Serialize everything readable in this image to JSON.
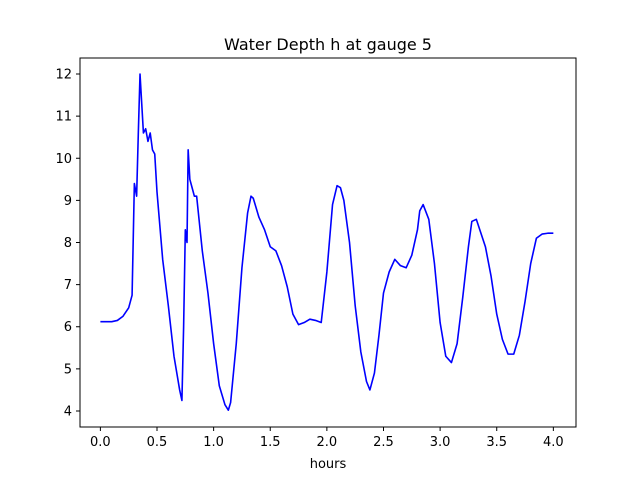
{
  "chart_data": {
    "type": "line",
    "title": "Water Depth h at gauge 5",
    "xlabel": "hours",
    "ylabel": "",
    "xlim": [
      -0.18,
      4.2
    ],
    "ylim": [
      3.62,
      12.38
    ],
    "xticks": [
      0.0,
      0.5,
      1.0,
      1.5,
      2.0,
      2.5,
      3.0,
      3.5,
      4.0
    ],
    "xtick_labels": [
      "0.0",
      "0.5",
      "1.0",
      "1.5",
      "2.0",
      "2.5",
      "3.0",
      "3.5",
      "4.0"
    ],
    "yticks": [
      4,
      5,
      6,
      7,
      8,
      9,
      10,
      11,
      12
    ],
    "ytick_labels": [
      "4",
      "5",
      "6",
      "7",
      "8",
      "9",
      "10",
      "11",
      "12"
    ],
    "grid": false,
    "series": [
      {
        "color": "#0000ff",
        "x": [
          0.0,
          0.05,
          0.1,
          0.15,
          0.2,
          0.25,
          0.28,
          0.3,
          0.32,
          0.335,
          0.35,
          0.365,
          0.38,
          0.4,
          0.42,
          0.44,
          0.46,
          0.48,
          0.5,
          0.55,
          0.6,
          0.65,
          0.7,
          0.72,
          0.735,
          0.75,
          0.765,
          0.775,
          0.79,
          0.81,
          0.83,
          0.85,
          0.9,
          0.95,
          1.0,
          1.05,
          1.1,
          1.13,
          1.15,
          1.2,
          1.25,
          1.3,
          1.33,
          1.35,
          1.4,
          1.45,
          1.5,
          1.55,
          1.6,
          1.65,
          1.7,
          1.75,
          1.8,
          1.85,
          1.9,
          1.95,
          2.0,
          2.05,
          2.09,
          2.12,
          2.15,
          2.2,
          2.25,
          2.3,
          2.35,
          2.38,
          2.42,
          2.46,
          2.5,
          2.55,
          2.6,
          2.65,
          2.7,
          2.75,
          2.8,
          2.82,
          2.85,
          2.9,
          2.95,
          3.0,
          3.05,
          3.1,
          3.15,
          3.2,
          3.25,
          3.28,
          3.32,
          3.4,
          3.45,
          3.5,
          3.55,
          3.6,
          3.65,
          3.7,
          3.75,
          3.8,
          3.85,
          3.9,
          3.95,
          4.0
        ],
        "y": [
          6.12,
          6.12,
          6.12,
          6.15,
          6.25,
          6.45,
          6.75,
          9.4,
          9.1,
          10.6,
          12.0,
          11.3,
          10.6,
          10.7,
          10.4,
          10.6,
          10.2,
          10.1,
          9.2,
          7.6,
          6.5,
          5.3,
          4.5,
          4.25,
          6.0,
          8.3,
          8.0,
          10.2,
          9.5,
          9.3,
          9.1,
          9.1,
          7.8,
          6.8,
          5.6,
          4.6,
          4.15,
          4.02,
          4.2,
          5.6,
          7.4,
          8.7,
          9.1,
          9.05,
          8.6,
          8.3,
          7.9,
          7.8,
          7.45,
          6.95,
          6.3,
          6.05,
          6.1,
          6.18,
          6.15,
          6.1,
          7.3,
          8.9,
          9.35,
          9.3,
          9.0,
          8.0,
          6.5,
          5.4,
          4.7,
          4.5,
          4.9,
          5.8,
          6.8,
          7.3,
          7.6,
          7.45,
          7.4,
          7.7,
          8.3,
          8.75,
          8.9,
          8.55,
          7.5,
          6.1,
          5.3,
          5.15,
          5.6,
          6.7,
          7.9,
          8.5,
          8.55,
          7.9,
          7.2,
          6.3,
          5.7,
          5.35,
          5.35,
          5.8,
          6.6,
          7.5,
          8.1,
          8.2,
          8.22,
          8.22
        ]
      }
    ]
  }
}
